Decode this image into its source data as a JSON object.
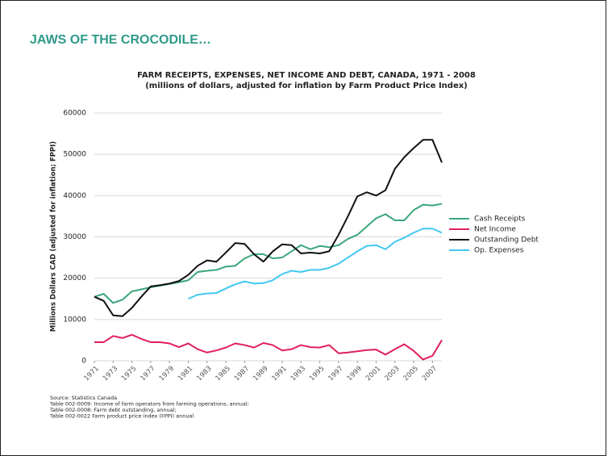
{
  "heading": "JAWS OF THE CROCODILE…",
  "notes": [
    "Source:  Statistics Canada",
    "Table 002-0009:  Income of farm operators from farming operations, annual;",
    "Table 002-0008: Farm debt outstanding, annual;",
    "Table 002-0022 Farm product price index (FPPI) annual"
  ],
  "chart_data": {
    "type": "line",
    "title": "FARM RECEIPTS, EXPENSES, NET INCOME AND DEBT, CANADA, 1971 - 2008",
    "subtitle": "(millions of dollars, adjusted for inflation by Farm Product Price Index)",
    "y_label": "Millions Dollars CAD (adjusted for inflation; FPPI)",
    "x": [
      1971,
      1972,
      1973,
      1974,
      1975,
      1976,
      1977,
      1978,
      1979,
      1980,
      1981,
      1982,
      1983,
      1984,
      1985,
      1986,
      1987,
      1988,
      1989,
      1990,
      1991,
      1992,
      1993,
      1994,
      1995,
      1996,
      1997,
      1998,
      1999,
      2000,
      2001,
      2002,
      2003,
      2004,
      2005,
      2006,
      2007,
      2008
    ],
    "xlim": [
      1971,
      2008
    ],
    "xticks": [
      1971,
      1973,
      1975,
      1977,
      1979,
      1981,
      1983,
      1985,
      1987,
      1989,
      1991,
      1993,
      1995,
      1997,
      1999,
      2001,
      2003,
      2005,
      2007
    ],
    "ylim": [
      0,
      60000
    ],
    "yticks": [
      0,
      10000,
      20000,
      30000,
      40000,
      50000,
      60000
    ],
    "grid": true,
    "legend": "right",
    "series": [
      {
        "name": "Cash Receipts",
        "color": "#3aa67a",
        "values": [
          15500,
          16200,
          14000,
          14800,
          16800,
          17300,
          17800,
          18200,
          18600,
          19000,
          19500,
          21500,
          21800,
          22000,
          22800,
          23000,
          24800,
          25800,
          25800,
          24800,
          25000,
          26500,
          28000,
          27000,
          27800,
          27500,
          28000,
          29500,
          30500,
          32500,
          34500,
          35500,
          34000,
          34000,
          36500,
          37800,
          37600,
          38000
        ]
      },
      {
        "name": "Net Income",
        "color": "#e0205a",
        "values": [
          4500,
          4500,
          6000,
          5500,
          6300,
          5300,
          4500,
          4500,
          4200,
          3300,
          4200,
          2800,
          2000,
          2500,
          3200,
          4200,
          3800,
          3200,
          4300,
          3800,
          2500,
          2800,
          3800,
          3300,
          3200,
          3800,
          1800,
          2000,
          2300,
          2600,
          2700,
          1500,
          2800,
          4000,
          2400,
          300,
          1200,
          5000
        ]
      },
      {
        "name": "Outstanding Debt",
        "color": "#111111",
        "values": [
          15500,
          14500,
          11000,
          10800,
          12800,
          15500,
          18000,
          18300,
          18700,
          19300,
          20800,
          23000,
          24300,
          24000,
          26200,
          28500,
          28300,
          25800,
          24000,
          26500,
          28200,
          28000,
          26000,
          26200,
          26000,
          26500,
          30500,
          35000,
          39800,
          40800,
          40000,
          41300,
          46500,
          49300,
          51500,
          53500,
          53500,
          48000
        ]
      },
      {
        "name": "Op. Expenses",
        "color": "#40c8f0",
        "values": [
          null,
          null,
          null,
          null,
          null,
          null,
          null,
          null,
          null,
          null,
          15000,
          16000,
          16300,
          16400,
          17500,
          18500,
          19200,
          18700,
          18800,
          19500,
          21000,
          21800,
          21500,
          22000,
          22000,
          22500,
          23500,
          25000,
          26500,
          27800,
          28000,
          27000,
          28800,
          29800,
          31000,
          32000,
          32000,
          31000
        ]
      }
    ]
  }
}
